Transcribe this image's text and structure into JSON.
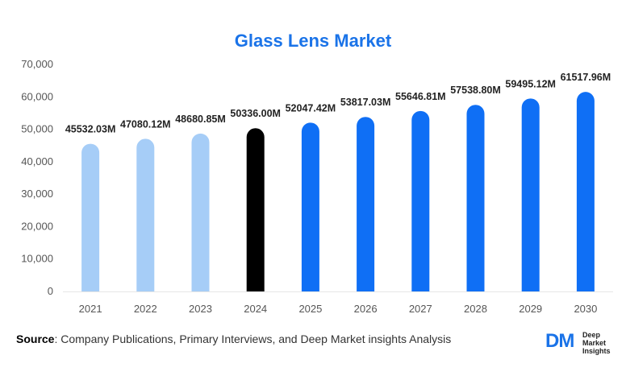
{
  "source": {
    "label": "Source",
    "text": ": Company Publications, Primary Interviews, and Deep Market insights Analysis"
  },
  "logo": {
    "mark": "DM",
    "line1": "Deep",
    "line2": "Market",
    "line3": "Insights"
  },
  "chart_data": {
    "type": "bar",
    "title": "Glass Lens Market",
    "xlabel": "",
    "ylabel": "",
    "categories": [
      "2021",
      "2022",
      "2023",
      "2024",
      "2025",
      "2026",
      "2027",
      "2028",
      "2029",
      "2030"
    ],
    "values": [
      45532.03,
      47080.12,
      48680.85,
      50336.0,
      52047.42,
      53817.03,
      55646.81,
      57538.8,
      59495.12,
      61517.96
    ],
    "data_labels": [
      "45532.03M",
      "47080.12M",
      "48680.85M",
      "50336.00M",
      "52047.42M",
      "53817.03M",
      "55646.81M",
      "57538.80M",
      "59495.12M",
      "61517.96M"
    ],
    "bar_colors": [
      "#a6cdf7",
      "#a6cdf7",
      "#a6cdf7",
      "#000000",
      "#0f6ff5",
      "#0f6ff5",
      "#0f6ff5",
      "#0f6ff5",
      "#0f6ff5",
      "#0f6ff5"
    ],
    "ylim": [
      0,
      70000
    ],
    "yticks": [
      0,
      10000,
      20000,
      30000,
      40000,
      50000,
      60000,
      70000
    ],
    "ytick_labels": [
      "0",
      "10,000",
      "20,000",
      "30,000",
      "40,000",
      "50,000",
      "60,000",
      "70,000"
    ],
    "grid": false,
    "legend": "none"
  }
}
